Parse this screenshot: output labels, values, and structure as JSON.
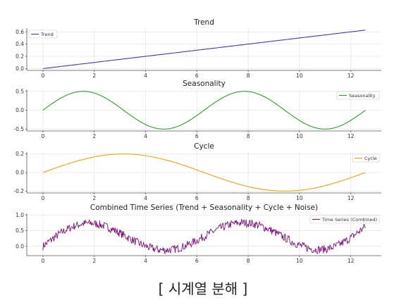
{
  "caption": "[ 시계열 분해 ]",
  "chart_data": [
    {
      "type": "line",
      "title": "Trend",
      "legend": "top-left",
      "grid": true,
      "xlim": [
        -0.63,
        13.19
      ],
      "ylim": [
        -0.03,
        0.66
      ],
      "xticks": [
        0,
        2,
        4,
        6,
        8,
        10,
        12
      ],
      "yticks": [
        0.0,
        0.2,
        0.4,
        0.6
      ],
      "series": [
        {
          "name": "Trend",
          "color": "#3a3ac4",
          "kind": "trend",
          "x_range": [
            0,
            12.566
          ]
        }
      ]
    },
    {
      "type": "line",
      "title": "Seasonality",
      "legend": "top-right",
      "grid": true,
      "xlim": [
        -0.63,
        13.19
      ],
      "ylim": [
        -0.55,
        0.55
      ],
      "xticks": [
        0,
        2,
        4,
        6,
        8,
        10,
        12
      ],
      "yticks": [
        -0.5,
        0.0,
        0.5
      ],
      "series": [
        {
          "name": "Seasonality",
          "color": "#2ca02c",
          "kind": "seasonality",
          "x_range": [
            0,
            12.566
          ]
        }
      ]
    },
    {
      "type": "line",
      "title": "Cycle",
      "legend": "top-right",
      "grid": true,
      "xlim": [
        -0.63,
        13.19
      ],
      "ylim": [
        -0.22,
        0.22
      ],
      "xticks": [
        0,
        2,
        4,
        6,
        8,
        10,
        12
      ],
      "yticks": [
        -0.2,
        0.0,
        0.2
      ],
      "series": [
        {
          "name": "Cycle",
          "color": "#f0a30a",
          "kind": "cycle",
          "x_range": [
            0,
            12.566
          ]
        }
      ]
    },
    {
      "type": "line",
      "title": "Combined Time Series (Trend + Seasonality + Cycle + Noise)",
      "legend": "top-right",
      "grid": true,
      "xlim": [
        -0.63,
        13.19
      ],
      "ylim": [
        -0.3,
        1.05
      ],
      "xticks": [
        0,
        2,
        4,
        6,
        8,
        10,
        12
      ],
      "yticks": [
        0.0,
        0.5,
        1.0
      ],
      "series": [
        {
          "name": "Time Series (Combined)",
          "color": "#7a127a",
          "kind": "combined",
          "x_range": [
            0,
            12.566
          ]
        }
      ]
    }
  ]
}
